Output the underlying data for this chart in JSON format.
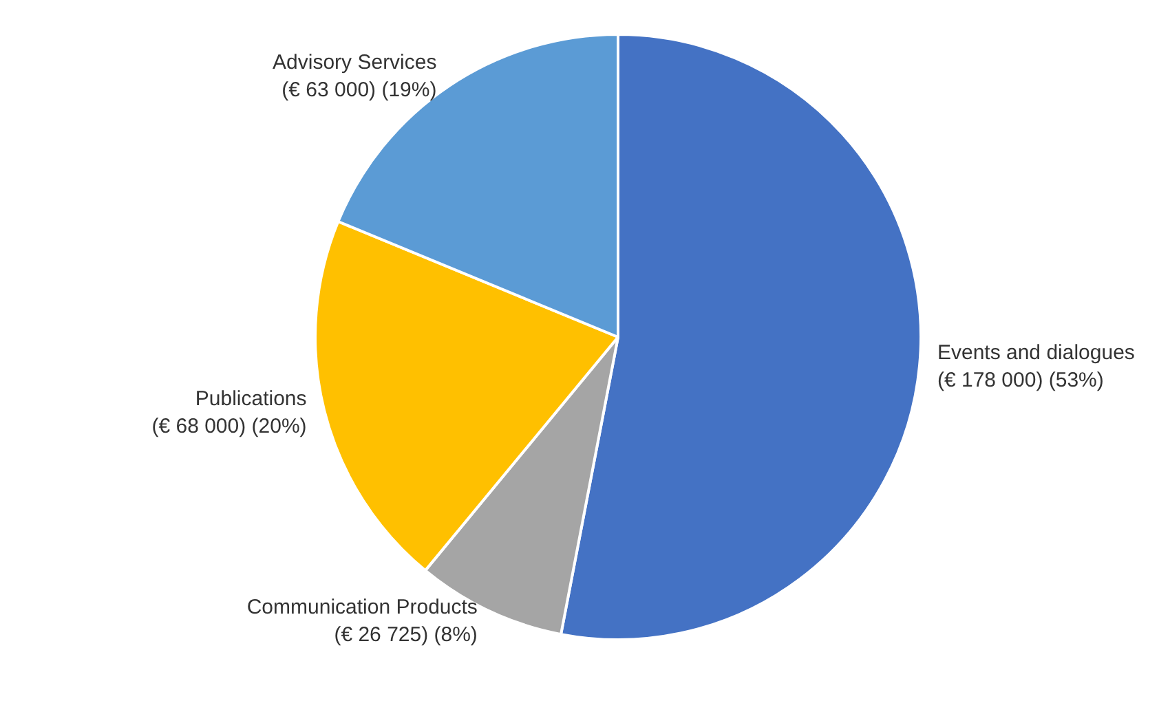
{
  "chart_data": {
    "type": "pie",
    "categories": [
      "Events and dialogues",
      "Communication Products",
      "Publications",
      "Advisory Services"
    ],
    "values": [
      178000,
      26725,
      68000,
      63000
    ],
    "colors": [
      "#4472c4",
      "#a5a5a5",
      "#ffc000",
      "#5b9bd5"
    ],
    "value_labels": [
      "(€ 178 000) (53%)",
      "(€ 26 725) (8%)",
      "(€ 68 000) (20%)",
      "(€ 63 000) (19%)"
    ],
    "legend": false
  }
}
